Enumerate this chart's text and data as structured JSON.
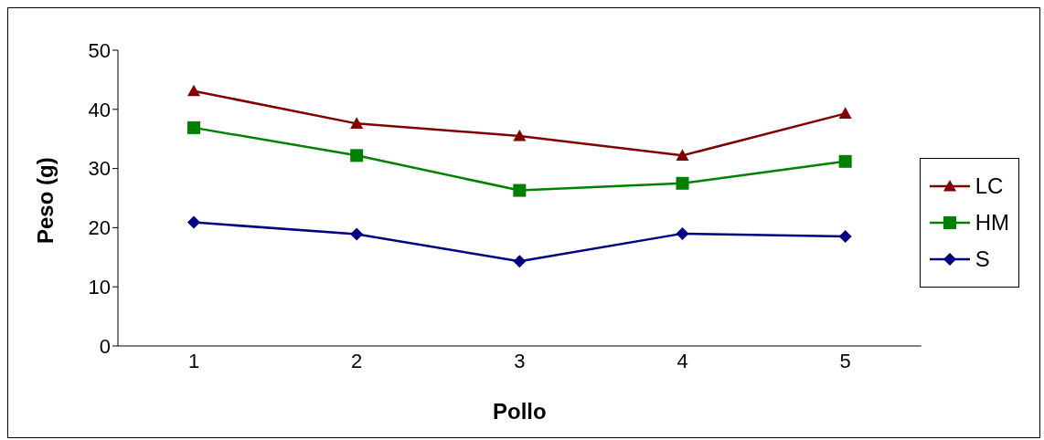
{
  "chart_data": {
    "type": "line",
    "xlabel": "Pollo",
    "ylabel": "Peso (g)",
    "categories": [
      "1",
      "2",
      "3",
      "4",
      "5"
    ],
    "series": [
      {
        "name": "LC",
        "color": "#800000",
        "marker": "triangle",
        "values": [
          43.1,
          37.6,
          35.5,
          32.2,
          39.3
        ]
      },
      {
        "name": "HM",
        "color": "#008000",
        "marker": "square",
        "values": [
          36.9,
          32.2,
          26.3,
          27.5,
          31.2
        ]
      },
      {
        "name": "S",
        "color": "#000080",
        "marker": "diamond",
        "values": [
          20.9,
          18.9,
          14.3,
          19.0,
          18.5
        ]
      }
    ],
    "ylim": [
      0,
      50
    ],
    "yticks": [
      0,
      10,
      20,
      30,
      40,
      50
    ],
    "grid": false,
    "legend": "right",
    "line_style": "solid"
  }
}
